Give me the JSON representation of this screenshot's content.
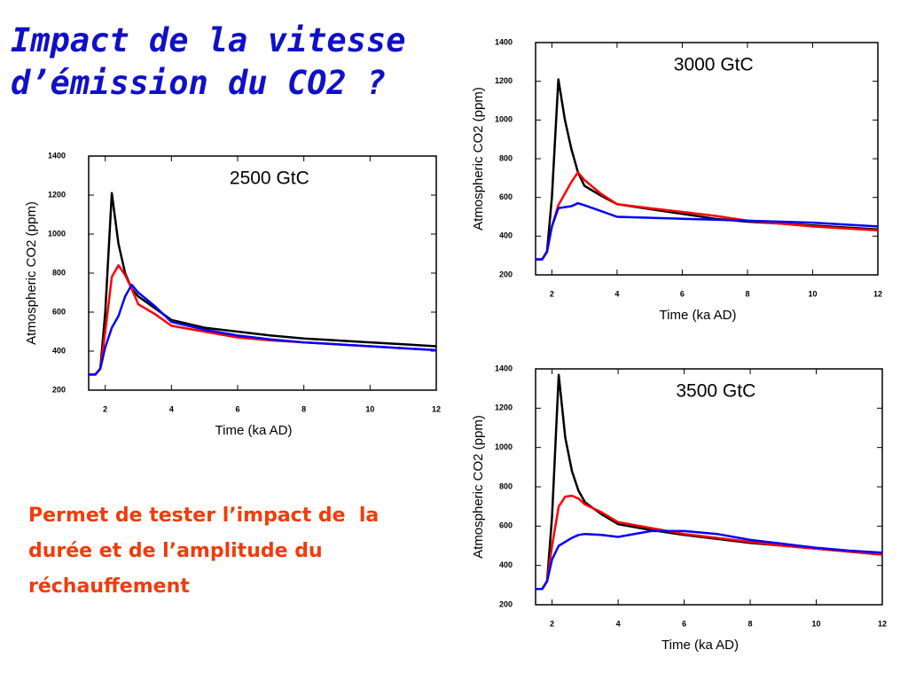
{
  "title": [
    "Impact de la vitesse",
    "d’émission du CO2 ?"
  ],
  "text": [
    "Permet de tester l’impact de  la",
    "durée et de l’amplitude du",
    "réchauffement"
  ],
  "chart_data": [
    {
      "type": "line",
      "title": "2500 GtC",
      "xlabel": "Time (ka AD)",
      "ylabel": "Atmospheric CO2 (ppm)",
      "x": [
        1.5,
        1.7,
        1.85,
        2.0,
        2.2,
        2.4,
        2.6,
        2.8,
        3.0,
        3.5,
        4,
        5,
        6,
        7,
        8,
        9,
        10,
        11,
        12
      ],
      "xlim": [
        1.5,
        12
      ],
      "xticks": [
        2,
        4,
        6,
        8,
        10,
        12
      ],
      "ylim": [
        200,
        1400
      ],
      "yticks": [
        200,
        400,
        600,
        800,
        1000,
        1200,
        1400
      ],
      "series": [
        {
          "color": "#000000",
          "values": [
            280,
            280,
            310,
            600,
            1210,
            950,
            800,
            720,
            680,
            620,
            560,
            520,
            500,
            480,
            465,
            455,
            445,
            435,
            425
          ]
        },
        {
          "color": "#ff0000",
          "values": [
            280,
            280,
            310,
            500,
            780,
            840,
            790,
            720,
            640,
            590,
            530,
            500,
            470,
            455,
            445,
            435,
            425,
            415,
            405
          ]
        },
        {
          "color": "#0000ff",
          "values": [
            280,
            280,
            310,
            420,
            520,
            580,
            680,
            740,
            700,
            630,
            550,
            510,
            480,
            460,
            445,
            435,
            425,
            415,
            405
          ]
        }
      ]
    },
    {
      "type": "line",
      "title": "3000 GtC",
      "xlabel": "Time (ka AD)",
      "ylabel": "Atmospheric CO2 (ppm)",
      "x": [
        1.5,
        1.7,
        1.85,
        2.0,
        2.2,
        2.4,
        2.6,
        2.8,
        3.0,
        3.5,
        4,
        5,
        6,
        7,
        8,
        9,
        10,
        11,
        12
      ],
      "xlim": [
        1.5,
        12
      ],
      "xticks": [
        2,
        4,
        6,
        8,
        10,
        12
      ],
      "ylim": [
        200,
        1400
      ],
      "yticks": [
        200,
        400,
        600,
        800,
        1000,
        1200,
        1400
      ],
      "series": [
        {
          "color": "#000000",
          "values": [
            280,
            280,
            320,
            600,
            1210,
            1000,
            850,
            730,
            660,
            610,
            565,
            540,
            515,
            490,
            475,
            465,
            455,
            445,
            435
          ]
        },
        {
          "color": "#ff0000",
          "values": [
            280,
            280,
            320,
            450,
            560,
            620,
            680,
            730,
            690,
            620,
            565,
            545,
            525,
            505,
            480,
            465,
            450,
            440,
            430
          ]
        },
        {
          "color": "#0000ff",
          "values": [
            280,
            280,
            320,
            450,
            545,
            550,
            555,
            570,
            560,
            530,
            500,
            495,
            490,
            485,
            480,
            475,
            470,
            460,
            450
          ]
        }
      ]
    },
    {
      "type": "line",
      "title": "3500 GtC",
      "xlabel": "Time (ka AD)",
      "ylabel": "Atmospheric CO2 (ppm)",
      "x": [
        1.5,
        1.7,
        1.85,
        2.0,
        2.2,
        2.4,
        2.6,
        2.8,
        3.0,
        3.5,
        4,
        5,
        6,
        7,
        8,
        9,
        10,
        11,
        12
      ],
      "xlim": [
        1.5,
        12
      ],
      "xticks": [
        2,
        4,
        6,
        8,
        10,
        12
      ],
      "ylim": [
        200,
        1400
      ],
      "yticks": [
        200,
        400,
        600,
        800,
        1000,
        1200,
        1400
      ],
      "series": [
        {
          "color": "#000000",
          "values": [
            280,
            280,
            320,
            650,
            1370,
            1050,
            880,
            780,
            720,
            660,
            610,
            580,
            555,
            535,
            515,
            500,
            485,
            470,
            455
          ]
        },
        {
          "color": "#ff0000",
          "values": [
            280,
            280,
            320,
            500,
            700,
            750,
            755,
            740,
            710,
            670,
            620,
            590,
            560,
            540,
            520,
            500,
            485,
            470,
            455
          ]
        },
        {
          "color": "#0000ff",
          "values": [
            280,
            280,
            320,
            430,
            500,
            520,
            540,
            555,
            560,
            555,
            545,
            575,
            575,
            560,
            530,
            510,
            490,
            475,
            465
          ]
        }
      ]
    }
  ]
}
